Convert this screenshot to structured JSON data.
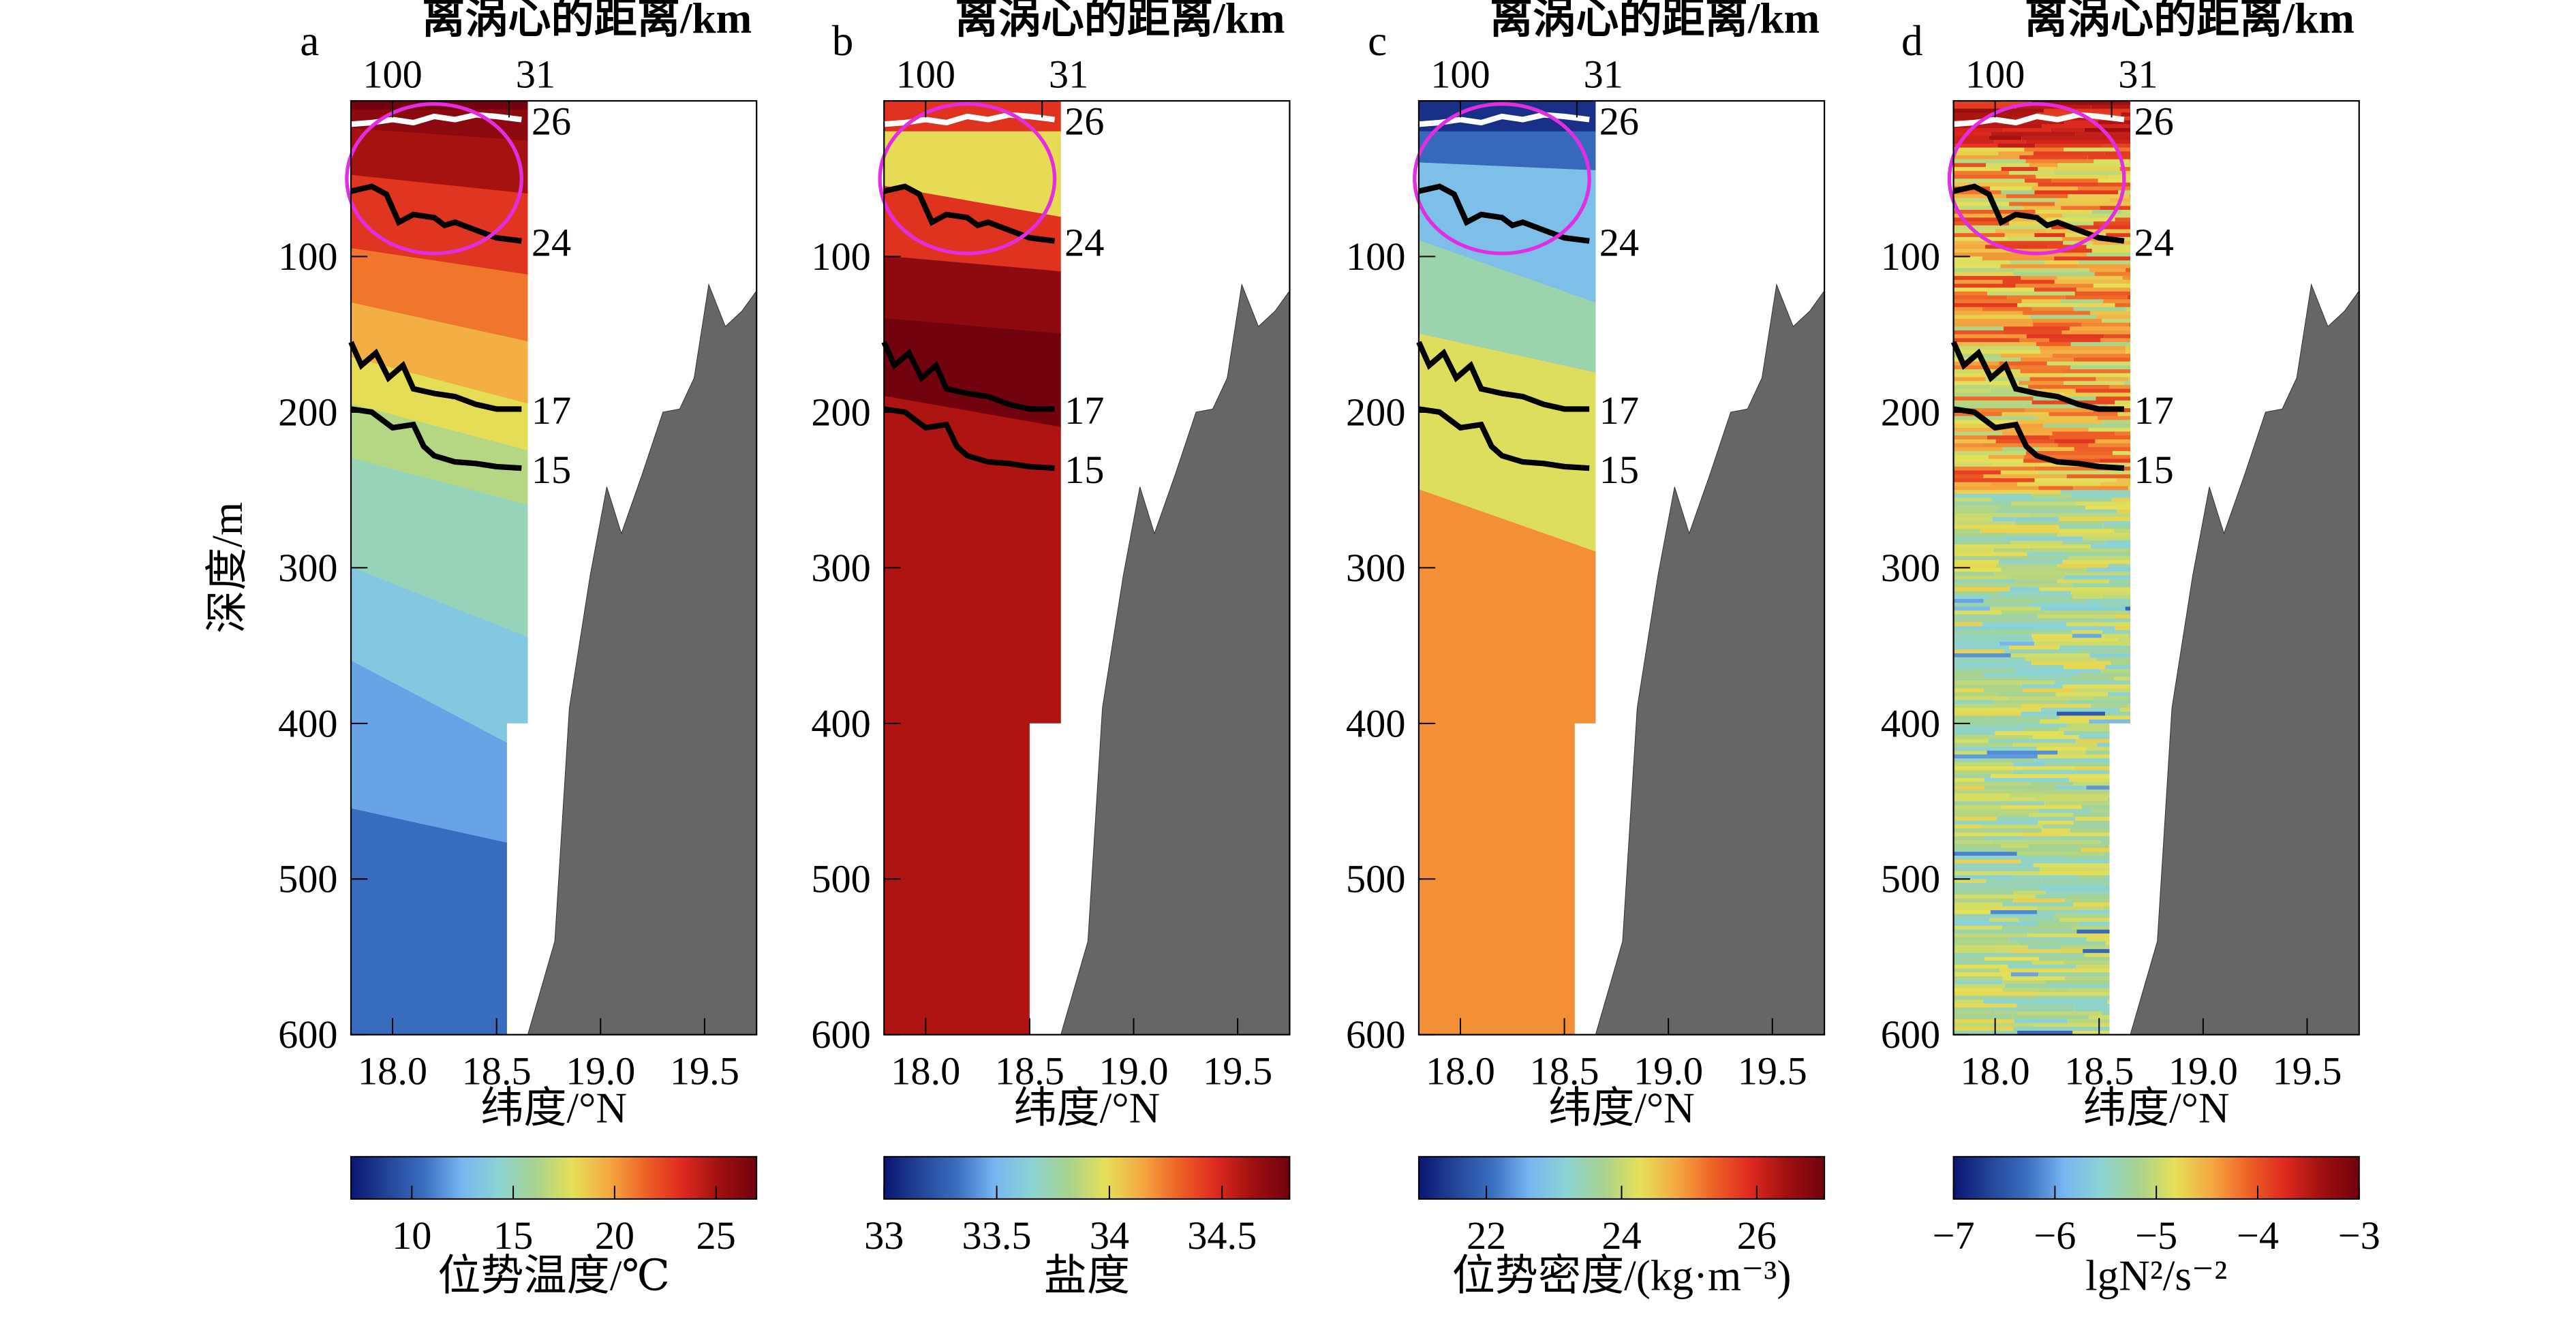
{
  "chart_data": [
    {
      "type": "heatmap",
      "panel_label": "a",
      "top_axis_label": "离涡心的距离/km",
      "top_ticks": [
        "100",
        "31"
      ],
      "xlabel": "纬度/°N",
      "ylabel": "深度/m",
      "colorbar_label": "位势温度/℃",
      "colorbar_range": [
        7,
        27
      ],
      "colorbar_ticks": [
        10,
        15,
        20,
        25
      ],
      "fill_levels": [
        27,
        26,
        25,
        23,
        21,
        19.5,
        18,
        16.5,
        15,
        13.5,
        12,
        10.5,
        9
      ],
      "fill_depths": [
        [
          0,
          0
        ],
        [
          6,
          6
        ],
        [
          18,
          26
        ],
        [
          48,
          60
        ],
        [
          95,
          112
        ],
        [
          130,
          155
        ],
        [
          165,
          195
        ],
        [
          195,
          225
        ],
        [
          230,
          260
        ],
        [
          300,
          345
        ],
        [
          360,
          420
        ],
        [
          455,
          480
        ],
        [
          600,
          600
        ]
      ],
      "profile_bottoms": [
        [
          17.8,
          600
        ],
        [
          18.55,
          600
        ],
        [
          18.55,
          400
        ],
        [
          18.65,
          400
        ]
      ]
    },
    {
      "type": "heatmap",
      "panel_label": "b",
      "top_axis_label": "离涡心的距离/km",
      "top_ticks": [
        "100",
        "31"
      ],
      "xlabel": "纬度/°N",
      "ylabel": "",
      "colorbar_label": "盐度",
      "colorbar_range": [
        33.0,
        34.8
      ],
      "colorbar_ticks": [
        33.0,
        33.5,
        34.0,
        34.5
      ],
      "fill_levels": [
        34.45,
        34.0,
        34.45,
        34.7,
        34.8,
        34.6,
        34.45
      ],
      "fill_depths": [
        [
          0,
          0
        ],
        [
          20,
          20
        ],
        [
          55,
          75
        ],
        [
          100,
          110
        ],
        [
          140,
          150
        ],
        [
          190,
          210
        ],
        [
          600,
          600
        ]
      ],
      "profile_bottoms": [
        [
          17.8,
          600
        ],
        [
          18.5,
          600
        ],
        [
          18.5,
          400
        ],
        [
          18.65,
          400
        ]
      ]
    },
    {
      "type": "heatmap",
      "panel_label": "c",
      "top_axis_label": "离涡心的距离/km",
      "top_ticks": [
        "100",
        "31"
      ],
      "xlabel": "纬度/°N",
      "ylabel": "",
      "colorbar_label": "位势密度/(kg·m⁻³)",
      "colorbar_range": [
        21,
        27
      ],
      "colorbar_ticks": [
        22,
        24,
        26
      ],
      "fill_levels": [
        21.3,
        22.0,
        22.8,
        23.5,
        24.2,
        25.0,
        26.5
      ],
      "fill_depths": [
        [
          0,
          0
        ],
        [
          20,
          20
        ],
        [
          40,
          45
        ],
        [
          90,
          130
        ],
        [
          150,
          175
        ],
        [
          250,
          290
        ],
        [
          600,
          600
        ]
      ],
      "profile_bottoms": [
        [
          17.8,
          600
        ],
        [
          18.55,
          600
        ],
        [
          18.55,
          400
        ],
        [
          18.65,
          400
        ]
      ]
    },
    {
      "type": "heatmap",
      "panel_label": "d",
      "top_axis_label": "离涡心的距离/km",
      "top_ticks": [
        "100",
        "31"
      ],
      "xlabel": "纬度/°N",
      "ylabel": "",
      "colorbar_label": "lgN²/s⁻²",
      "colorbar_range": [
        -7,
        -3
      ],
      "colorbar_ticks": [
        "−7",
        "−6",
        "−5",
        "−4",
        "−3"
      ],
      "profile_bottoms": [
        [
          17.8,
          600
        ],
        [
          18.55,
          600
        ],
        [
          18.55,
          400
        ],
        [
          18.65,
          400
        ]
      ]
    }
  ],
  "shared": {
    "x_range": [
      17.8,
      19.75
    ],
    "x_ticks": [
      "18.0",
      "18.5",
      "19.0",
      "19.5"
    ],
    "y_range": [
      0,
      600
    ],
    "y_ticks": [
      100,
      200,
      300,
      400,
      500,
      600
    ],
    "top_tick_latitudes": [
      18.0,
      18.56
    ],
    "isopycnals": [
      {
        "label": "26",
        "points": [
          [
            17.8,
            15
          ],
          [
            17.9,
            14
          ],
          [
            18.0,
            12
          ],
          [
            18.1,
            14
          ],
          [
            18.2,
            10
          ],
          [
            18.3,
            12
          ],
          [
            18.4,
            9
          ],
          [
            18.5,
            10
          ],
          [
            18.62,
            12
          ]
        ]
      },
      {
        "label": "24",
        "points": [
          [
            17.8,
            58
          ],
          [
            17.9,
            55
          ],
          [
            17.97,
            60
          ],
          [
            18.03,
            78
          ],
          [
            18.1,
            73
          ],
          [
            18.2,
            75
          ],
          [
            18.25,
            80
          ],
          [
            18.3,
            78
          ],
          [
            18.4,
            83
          ],
          [
            18.5,
            88
          ],
          [
            18.62,
            90
          ]
        ]
      },
      {
        "label": "17",
        "points": [
          [
            17.8,
            155
          ],
          [
            17.85,
            170
          ],
          [
            17.92,
            162
          ],
          [
            17.98,
            178
          ],
          [
            18.05,
            170
          ],
          [
            18.1,
            185
          ],
          [
            18.2,
            188
          ],
          [
            18.3,
            190
          ],
          [
            18.4,
            195
          ],
          [
            18.5,
            198
          ],
          [
            18.62,
            198
          ]
        ]
      },
      {
        "label": "15",
        "points": [
          [
            17.8,
            198
          ],
          [
            17.9,
            200
          ],
          [
            18.0,
            210
          ],
          [
            18.1,
            208
          ],
          [
            18.15,
            222
          ],
          [
            18.2,
            228
          ],
          [
            18.3,
            232
          ],
          [
            18.4,
            233
          ],
          [
            18.5,
            235
          ],
          [
            18.62,
            236
          ]
        ]
      }
    ],
    "bathymetry": [
      [
        18.65,
        600
      ],
      [
        18.78,
        540
      ],
      [
        18.85,
        390
      ],
      [
        18.95,
        305
      ],
      [
        19.03,
        248
      ],
      [
        19.1,
        278
      ],
      [
        19.2,
        240
      ],
      [
        19.3,
        200
      ],
      [
        19.38,
        198
      ],
      [
        19.45,
        178
      ],
      [
        19.52,
        118
      ],
      [
        19.6,
        145
      ],
      [
        19.68,
        135
      ],
      [
        19.75,
        122
      ]
    ],
    "highlight_ellipse": {
      "center_lat": 18.2,
      "center_depth": 50,
      "semi_lat": 0.42,
      "semi_depth": 48,
      "color": "#e22ee0"
    },
    "colormap": [
      "#0a1671",
      "#23469a",
      "#3a6fc1",
      "#77b6f1",
      "#8bd3d5",
      "#a7d38f",
      "#e5e057",
      "#f5a840",
      "#ee6126",
      "#dd2a1e",
      "#a00f0f",
      "#71020e"
    ],
    "bathymetry_color": "#666666"
  }
}
